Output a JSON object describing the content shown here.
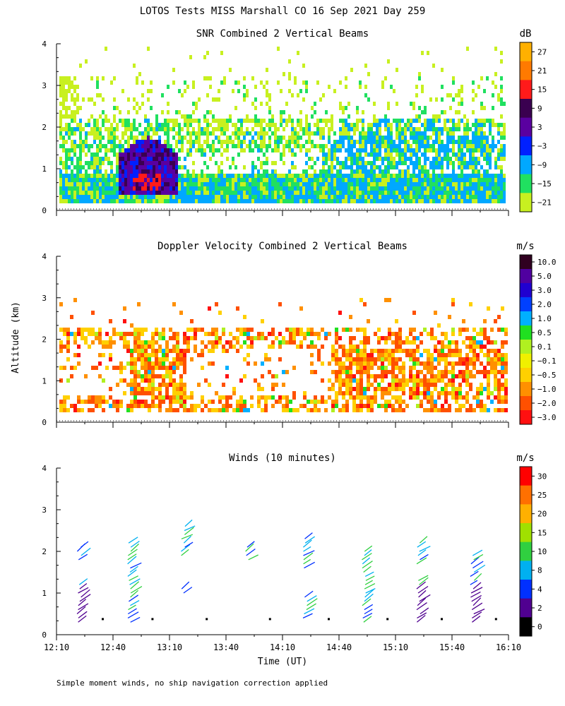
{
  "figure": {
    "title": "LOTOS Tests MISS Marshall CO  16 Sep 2021 Day 259",
    "ylabel": "Altitude (km)",
    "xlabel": "Time (UT)",
    "footnote": "Simple moment winds, no ship navigation correction applied"
  },
  "chart_data": [
    {
      "type": "heatmap",
      "title": "SNR Combined 2 Vertical Beams",
      "units": "dB",
      "xlim": [
        "12:10",
        "16:10"
      ],
      "ylim": [
        0,
        4
      ],
      "ytick_labels": [
        "0",
        "1",
        "2",
        "3",
        "4"
      ],
      "colorbar_labels": [
        "27",
        "21",
        "15",
        "9",
        "3",
        "−3",
        "−9",
        "−15",
        "−21"
      ],
      "colorbar_colors": [
        "#ffb000",
        "#ff7a00",
        "#ff1a1a",
        "#3a0050",
        "#5a00a0",
        "#0020ff",
        "#00a8ff",
        "#20e060",
        "#c8f020"
      ]
    },
    {
      "type": "heatmap",
      "title": "Doppler Velocity Combined 2 Vertical Beams",
      "units": "m/s",
      "xlim": [
        "12:10",
        "16:10"
      ],
      "ylim": [
        0,
        4
      ],
      "ytick_labels": [
        "0",
        "1",
        "2",
        "3",
        "4"
      ],
      "colorbar_labels": [
        "10.0",
        "5.0",
        "3.0",
        "2.0",
        "1.0",
        "0.5",
        "0.1",
        "−0.1",
        "−0.5",
        "−1.0",
        "−2.0",
        "−3.0"
      ],
      "colorbar_colors": [
        "#300020",
        "#5000a0",
        "#2000d0",
        "#0040ff",
        "#00b0ff",
        "#20e020",
        "#b0f020",
        "#f0f000",
        "#ffd000",
        "#ff9000",
        "#ff5000",
        "#ff1010"
      ]
    },
    {
      "type": "scatter",
      "title": "Winds (10 minutes)",
      "units": "m/s",
      "xlim": [
        "12:10",
        "16:10"
      ],
      "ylim": [
        0,
        4
      ],
      "ytick_labels": [
        "0",
        "1",
        "2",
        "3",
        "4"
      ],
      "xtick_labels": [
        "12:10",
        "12:40",
        "13:10",
        "13:40",
        "14:10",
        "14:40",
        "15:10",
        "15:40",
        "16:10"
      ],
      "colorbar_labels": [
        "30",
        "25",
        "20",
        "15",
        "10",
        "8",
        "4",
        "2",
        "0"
      ],
      "colorbar_colors": [
        "#ff0000",
        "#ff7000",
        "#ffb000",
        "#a0e000",
        "#30d040",
        "#00b0f0",
        "#0030ff",
        "#500090",
        "#000000"
      ]
    }
  ]
}
